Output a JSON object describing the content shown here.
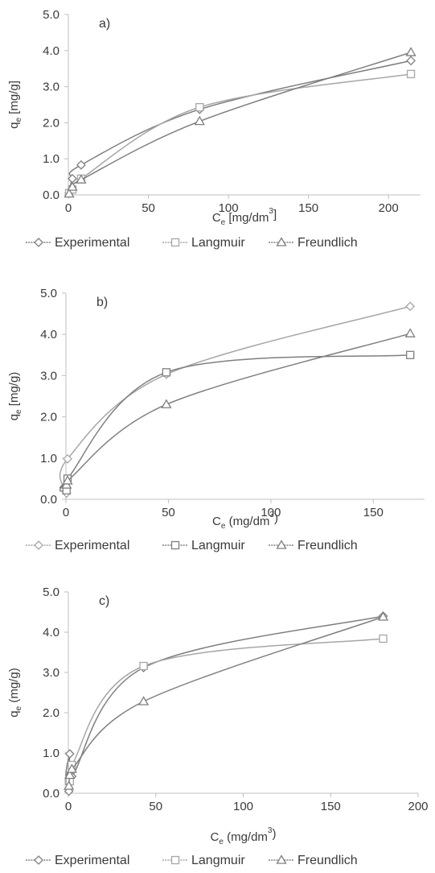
{
  "chart_data": [
    {
      "type": "line",
      "panel_label": "a)",
      "xlabel": {
        "base": "C",
        "sub": "e",
        "rest": " [mg/dm",
        "sup": "3",
        "end": "]"
      },
      "ylabel": {
        "base": "q",
        "sub": "e",
        "rest": " [mg/g]"
      },
      "xlim": [
        0,
        220
      ],
      "xticks": [
        0,
        50,
        100,
        150,
        200
      ],
      "xtick_labels": [
        "0",
        "50",
        "100",
        "150",
        "200"
      ],
      "ylim": [
        0,
        5
      ],
      "yticks": [
        0,
        1,
        2,
        3,
        4,
        5
      ],
      "ytick_labels": [
        "0.0",
        "1.0",
        "2.0",
        "3.0",
        "4.0",
        "5.0"
      ],
      "legend_position": "bottom",
      "series": [
        {
          "name": "Experimental",
          "marker": "diamond",
          "color": "#7f7f7f",
          "x": [
            0.5,
            2.5,
            8,
            82,
            214
          ],
          "y": [
            0.05,
            0.45,
            0.83,
            2.37,
            3.72
          ]
        },
        {
          "name": "Langmuir",
          "marker": "square",
          "color": "#a6a6a6",
          "x": [
            0.5,
            2.5,
            8,
            82,
            214
          ],
          "y": [
            0.05,
            0.15,
            0.45,
            2.43,
            3.35
          ]
        },
        {
          "name": "Freundlich",
          "marker": "triangle",
          "color": "#7f7f7f",
          "x": [
            0.5,
            2.5,
            8,
            82,
            214
          ],
          "y": [
            0.03,
            0.22,
            0.42,
            2.04,
            3.95
          ]
        }
      ]
    },
    {
      "type": "line",
      "panel_label": "b)",
      "xlabel": {
        "base": "C",
        "sub": "e",
        "rest": " (mg/dm",
        "sup": "3",
        "end": ")"
      },
      "ylabel": {
        "base": "q",
        "sub": "e",
        "rest": " [mg/g)"
      },
      "xlim": [
        0,
        175
      ],
      "xticks": [
        0,
        50,
        100,
        150
      ],
      "xtick_labels": [
        "0",
        "50",
        "100",
        "150"
      ],
      "ylim": [
        0,
        5
      ],
      "yticks": [
        0,
        1,
        2,
        3,
        4,
        5
      ],
      "ytick_labels": [
        "0.0",
        "1.0",
        "2.0",
        "3.0",
        "4.0",
        "5.0"
      ],
      "legend_position": "bottom",
      "series": [
        {
          "name": "Experimental",
          "marker": "diamond",
          "color": "#a6a6a6",
          "x": [
            0.3,
            0.8,
            49,
            168
          ],
          "y": [
            0.15,
            0.98,
            3.03,
            4.68
          ]
        },
        {
          "name": "Langmuir",
          "marker": "square",
          "color": "#7f7f7f",
          "x": [
            0.3,
            0.8,
            49,
            168
          ],
          "y": [
            0.22,
            0.5,
            3.08,
            3.5
          ]
        },
        {
          "name": "Freundlich",
          "marker": "triangle",
          "color": "#7f7f7f",
          "x": [
            0.3,
            0.8,
            49,
            168
          ],
          "y": [
            0.35,
            0.45,
            2.3,
            4.02
          ]
        }
      ]
    },
    {
      "type": "line",
      "panel_label": "c)",
      "xlabel": {
        "base": "C",
        "sub": "e",
        "rest": " (mg/dm",
        "sup": "3",
        "end": ")"
      },
      "ylabel": {
        "base": "q",
        "sub": "e",
        "rest": " (mg/g)"
      },
      "xlim": [
        0,
        200
      ],
      "xticks": [
        0,
        50,
        100,
        150,
        200
      ],
      "xtick_labels": [
        "0",
        "50",
        "100",
        "150",
        "200"
      ],
      "ylim": [
        0,
        5
      ],
      "yticks": [
        0,
        1,
        2,
        3,
        4,
        5
      ],
      "ytick_labels": [
        "0.0",
        "1.0",
        "2.0",
        "3.0",
        "4.0",
        "5.0"
      ],
      "legend_position": "bottom",
      "series": [
        {
          "name": "Experimental",
          "marker": "diamond",
          "color": "#7f7f7f",
          "x": [
            0.3,
            0.8,
            2,
            43,
            180
          ],
          "y": [
            0.05,
            0.98,
            0.42,
            3.12,
            4.4
          ]
        },
        {
          "name": "Langmuir",
          "marker": "square",
          "color": "#a6a6a6",
          "x": [
            0.3,
            0.8,
            2,
            43,
            180
          ],
          "y": [
            0.3,
            0.3,
            0.7,
            3.16,
            3.84
          ]
        },
        {
          "name": "Freundlich",
          "marker": "triangle",
          "color": "#7f7f7f",
          "x": [
            0.3,
            0.8,
            2,
            43,
            180
          ],
          "y": [
            0.18,
            0.45,
            0.6,
            2.28,
            4.38
          ]
        }
      ]
    }
  ]
}
